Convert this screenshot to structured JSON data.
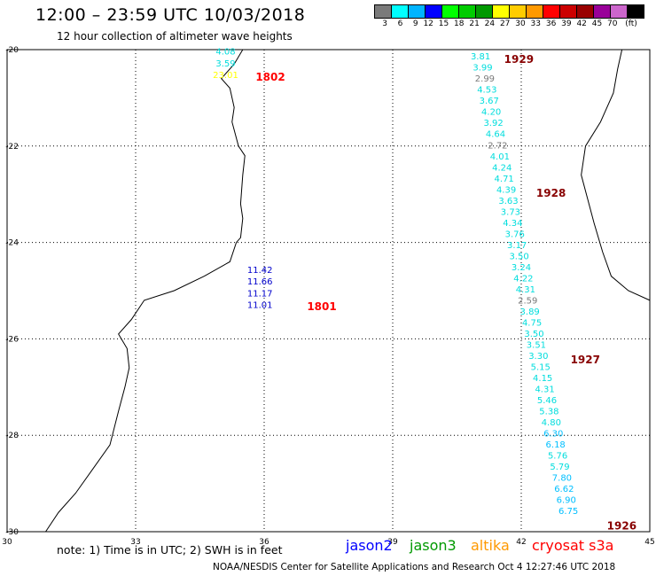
{
  "header": {
    "title": "12:00 – 23:59 UTC 10/03/2018",
    "subtitle": "12 hour collection of altimeter wave heights"
  },
  "legend": {
    "unit": "(ft)",
    "bins": [
      {
        "label": "3",
        "color": "#7a7a7a"
      },
      {
        "label": "6",
        "color": "#00ffff"
      },
      {
        "label": "9",
        "color": "#00b4ff"
      },
      {
        "label": "12",
        "color": "#0000ff"
      },
      {
        "label": "15",
        "color": "#00ff00"
      },
      {
        "label": "18",
        "color": "#00cc00"
      },
      {
        "label": "21",
        "color": "#009900"
      },
      {
        "label": "24",
        "color": "#ffff00"
      },
      {
        "label": "27",
        "color": "#ffcc00"
      },
      {
        "label": "30",
        "color": "#ff9900"
      },
      {
        "label": "33",
        "color": "#ff0000"
      },
      {
        "label": "36",
        "color": "#cc0000"
      },
      {
        "label": "39",
        "color": "#990000"
      },
      {
        "label": "42",
        "color": "#990099"
      },
      {
        "label": "45",
        "color": "#cc66cc"
      },
      {
        "label": "70",
        "color": "#000000"
      }
    ]
  },
  "axes": {
    "lon_ticks": [
      "30",
      "33",
      "36",
      "39",
      "42",
      "45"
    ],
    "lat_ticks": [
      "-20",
      "-22",
      "-24",
      "-26",
      "-28",
      "-30"
    ],
    "lon_range": [
      30,
      45
    ],
    "lat_range": [
      -30,
      -20
    ]
  },
  "tracks": [
    {
      "id": "1802",
      "label_color": "#ff0000",
      "points": [
        {
          "lon": 35.1,
          "lat": -20.05,
          "v": "4.08",
          "c": "#00dddd"
        },
        {
          "lon": 35.1,
          "lat": -20.29,
          "v": "3.59",
          "c": "#00dddd"
        },
        {
          "lon": 35.1,
          "lat": -20.53,
          "v": "23.01",
          "c": "#ffff00"
        }
      ]
    },
    {
      "id": "1801",
      "label_color": "#ff0000",
      "points": [
        {
          "lon": 35.9,
          "lat": -24.58,
          "v": "11.42",
          "c": "#0000cc"
        },
        {
          "lon": 35.9,
          "lat": -24.82,
          "v": "11.66",
          "c": "#0000cc"
        },
        {
          "lon": 35.9,
          "lat": -25.06,
          "v": "11.17",
          "c": "#0000cc"
        },
        {
          "lon": 35.9,
          "lat": -25.3,
          "v": "11.01",
          "c": "#0000cc"
        }
      ]
    },
    {
      "id": "cryosat",
      "label_color": "#880000",
      "points": [
        {
          "lon": 41.05,
          "lat": -20.15,
          "v": "3.81",
          "c": "#00dddd"
        },
        {
          "lon": 41.1,
          "lat": -20.38,
          "v": "3.99",
          "c": "#00dddd"
        },
        {
          "lon": 41.15,
          "lat": -20.61,
          "v": "2.99",
          "c": "#7a7a7a"
        },
        {
          "lon": 41.2,
          "lat": -20.84,
          "v": "4.53",
          "c": "#00dddd"
        },
        {
          "lon": 41.25,
          "lat": -21.07,
          "v": "3.67",
          "c": "#00dddd"
        },
        {
          "lon": 41.3,
          "lat": -21.3,
          "v": "4.20",
          "c": "#00dddd"
        },
        {
          "lon": 41.35,
          "lat": -21.53,
          "v": "3.92",
          "c": "#00dddd"
        },
        {
          "lon": 41.4,
          "lat": -21.76,
          "v": "4.64",
          "c": "#00dddd"
        },
        {
          "lon": 41.45,
          "lat": -21.99,
          "v": "2.72",
          "c": "#7a7a7a"
        },
        {
          "lon": 41.5,
          "lat": -22.22,
          "v": "4.01",
          "c": "#00dddd"
        },
        {
          "lon": 41.55,
          "lat": -22.45,
          "v": "4.24",
          "c": "#00dddd"
        },
        {
          "lon": 41.6,
          "lat": -22.68,
          "v": "4.71",
          "c": "#00dddd"
        },
        {
          "lon": 41.65,
          "lat": -22.91,
          "v": "4.39",
          "c": "#00dddd"
        },
        {
          "lon": 41.7,
          "lat": -23.14,
          "v": "3.63",
          "c": "#00dddd"
        },
        {
          "lon": 41.75,
          "lat": -23.37,
          "v": "3.73",
          "c": "#00dddd"
        },
        {
          "lon": 41.8,
          "lat": -23.6,
          "v": "4.34",
          "c": "#00dddd"
        },
        {
          "lon": 41.85,
          "lat": -23.83,
          "v": "3.76",
          "c": "#00dddd"
        },
        {
          "lon": 41.9,
          "lat": -24.06,
          "v": "3.17",
          "c": "#00dddd"
        },
        {
          "lon": 41.95,
          "lat": -24.29,
          "v": "3.50",
          "c": "#00dddd"
        },
        {
          "lon": 42.0,
          "lat": -24.52,
          "v": "3.24",
          "c": "#00dddd"
        },
        {
          "lon": 42.05,
          "lat": -24.75,
          "v": "4.22",
          "c": "#00dddd"
        },
        {
          "lon": 42.1,
          "lat": -24.98,
          "v": "4.31",
          "c": "#00dddd"
        },
        {
          "lon": 42.15,
          "lat": -25.21,
          "v": "2.59",
          "c": "#7a7a7a"
        },
        {
          "lon": 42.2,
          "lat": -25.44,
          "v": "3.89",
          "c": "#00dddd"
        },
        {
          "lon": 42.25,
          "lat": -25.67,
          "v": "4.75",
          "c": "#00dddd"
        },
        {
          "lon": 42.3,
          "lat": -25.9,
          "v": "3.50",
          "c": "#00dddd"
        },
        {
          "lon": 42.35,
          "lat": -26.13,
          "v": "3.51",
          "c": "#00dddd"
        },
        {
          "lon": 42.4,
          "lat": -26.36,
          "v": "3.30",
          "c": "#00dddd"
        },
        {
          "lon": 42.45,
          "lat": -26.59,
          "v": "5.15",
          "c": "#00dddd"
        },
        {
          "lon": 42.5,
          "lat": -26.82,
          "v": "4.15",
          "c": "#00dddd"
        },
        {
          "lon": 42.55,
          "lat": -27.05,
          "v": "4.31",
          "c": "#00dddd"
        },
        {
          "lon": 42.6,
          "lat": -27.28,
          "v": "5.46",
          "c": "#00dddd"
        },
        {
          "lon": 42.65,
          "lat": -27.51,
          "v": "5.38",
          "c": "#00dddd"
        },
        {
          "lon": 42.7,
          "lat": -27.74,
          "v": "4.80",
          "c": "#00dddd"
        },
        {
          "lon": 42.75,
          "lat": -27.97,
          "v": "6.30",
          "c": "#00bfff"
        },
        {
          "lon": 42.8,
          "lat": -28.2,
          "v": "6.18",
          "c": "#00bfff"
        },
        {
          "lon": 42.85,
          "lat": -28.43,
          "v": "5.76",
          "c": "#00dddd"
        },
        {
          "lon": 42.9,
          "lat": -28.66,
          "v": "5.79",
          "c": "#00dddd"
        },
        {
          "lon": 42.95,
          "lat": -28.89,
          "v": "7.80",
          "c": "#00bfff"
        },
        {
          "lon": 43.0,
          "lat": -29.12,
          "v": "6.62",
          "c": "#00bfff"
        },
        {
          "lon": 43.05,
          "lat": -29.35,
          "v": "6.90",
          "c": "#00bfff"
        },
        {
          "lon": 43.1,
          "lat": -29.58,
          "v": "6.75",
          "c": "#00bfff"
        }
      ]
    }
  ],
  "pass_labels": [
    {
      "text": "1802",
      "lon": 35.8,
      "lat": -20.57,
      "color": "#ff0000"
    },
    {
      "text": "1801",
      "lon": 37.0,
      "lat": -25.33,
      "color": "#ff0000"
    },
    {
      "text": "1929",
      "lon": 41.6,
      "lat": -20.2,
      "color": "#880000"
    },
    {
      "text": "1928",
      "lon": 42.35,
      "lat": -22.98,
      "color": "#880000"
    },
    {
      "text": "1927",
      "lon": 43.15,
      "lat": -26.43,
      "color": "#880000"
    },
    {
      "text": "1926",
      "lon": 44.0,
      "lat": -29.88,
      "color": "#880000"
    }
  ],
  "footer": {
    "note": "note:  1) Time is in UTC;  2) SWH is in feet",
    "satellites": [
      {
        "name": "jason2",
        "color": "#0000ff"
      },
      {
        "name": "jason3",
        "color": "#009900"
      },
      {
        "name": "altika",
        "color": "#ff9900"
      },
      {
        "name": "cryosat s3a",
        "color": "#ff0000"
      }
    ],
    "credit": "NOAA/NESDIS Center for Satellite Applications and Research    Oct  4 12:27:46 UTC 2018"
  }
}
